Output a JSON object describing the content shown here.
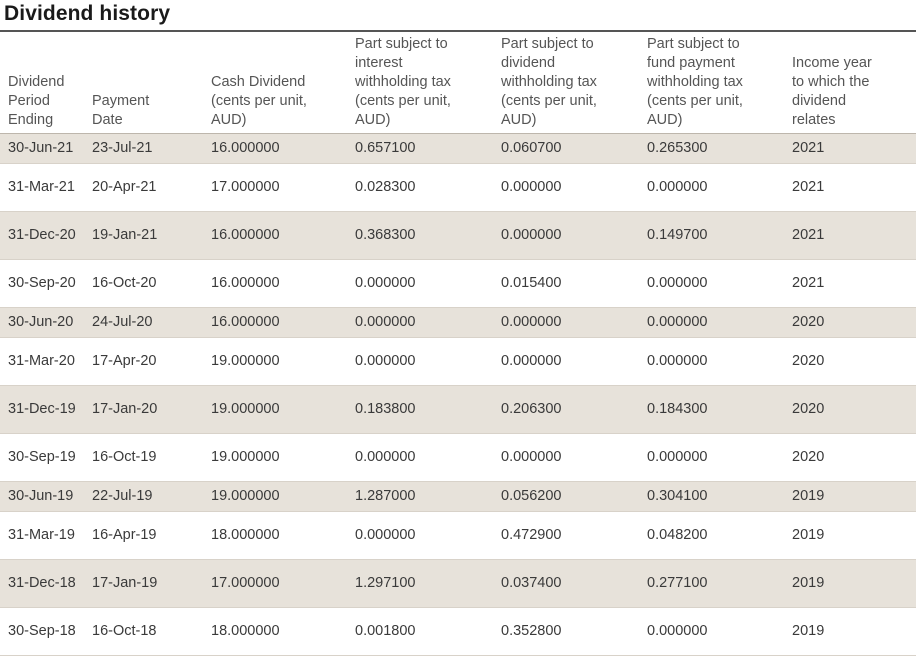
{
  "page": {
    "title": "Dividend history"
  },
  "table": {
    "headers": [
      "Dividend\nPeriod\nEnding",
      "Payment\nDate",
      "Cash Dividend\n(cents per unit,\nAUD)",
      "Part subject to\ninterest\nwithholding tax\n(cents per unit,\nAUD)",
      "Part subject to\ndividend\nwithholding tax\n(cents per unit,\nAUD)",
      "Part subject to\nfund payment\nwithholding tax\n(cents per unit,\nAUD)",
      "Income year\nto which the\ndividend\nrelates"
    ],
    "rows": [
      [
        "30-Jun-21",
        "23-Jul-21",
        "16.000000",
        "0.657100",
        "0.060700",
        "0.265300",
        "2021"
      ],
      [
        "31-Mar-21",
        "20-Apr-21",
        "17.000000",
        "0.028300",
        "0.000000",
        "0.000000",
        "2021"
      ],
      [
        "31-Dec-20",
        "19-Jan-21",
        "16.000000",
        "0.368300",
        "0.000000",
        "0.149700",
        "2021"
      ],
      [
        "30-Sep-20",
        "16-Oct-20",
        "16.000000",
        "0.000000",
        "0.015400",
        "0.000000",
        "2021"
      ],
      [
        "30-Jun-20",
        "24-Jul-20",
        "16.000000",
        "0.000000",
        "0.000000",
        "0.000000",
        "2020"
      ],
      [
        "31-Mar-20",
        "17-Apr-20",
        "19.000000",
        "0.000000",
        "0.000000",
        "0.000000",
        "2020"
      ],
      [
        "31-Dec-19",
        "17-Jan-20",
        "19.000000",
        "0.183800",
        "0.206300",
        "0.184300",
        "2020"
      ],
      [
        "30-Sep-19",
        "16-Oct-19",
        "19.000000",
        "0.000000",
        "0.000000",
        "0.000000",
        "2020"
      ],
      [
        "30-Jun-19",
        "22-Jul-19",
        "19.000000",
        "1.287000",
        "0.056200",
        "0.304100",
        "2019"
      ],
      [
        "31-Mar-19",
        "16-Apr-19",
        "18.000000",
        "0.000000",
        "0.472900",
        "0.048200",
        "2019"
      ],
      [
        "31-Dec-18",
        "17-Jan-19",
        "17.000000",
        "1.297100",
        "0.037400",
        "0.277100",
        "2019"
      ],
      [
        "30-Sep-18",
        "16-Oct-18",
        "18.000000",
        "0.001800",
        "0.352800",
        "0.000000",
        "2019"
      ]
    ]
  },
  "colors": {
    "row_shade": "#e7e2da",
    "text": "#3a3a3a",
    "header_text": "#555555",
    "top_rule": "#555555"
  }
}
